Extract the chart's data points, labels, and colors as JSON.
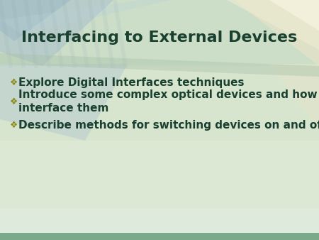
{
  "title": "Interfacing to External Devices",
  "title_color": "#1a4030",
  "title_fontsize": 16,
  "title_fontstyle": "bold",
  "bullet_points": [
    "Explore Digital Interfaces techniques",
    "Introduce some complex optical devices and how to\ninterface them",
    "Describe methods for switching devices on and off"
  ],
  "bullet_color": "#1a4030",
  "bullet_fontsize": 11,
  "bullet_symbol": "❖",
  "bullet_symbol_color": "#8b8b1a",
  "fig_width": 4.5,
  "fig_height": 3.38,
  "dpi": 100
}
